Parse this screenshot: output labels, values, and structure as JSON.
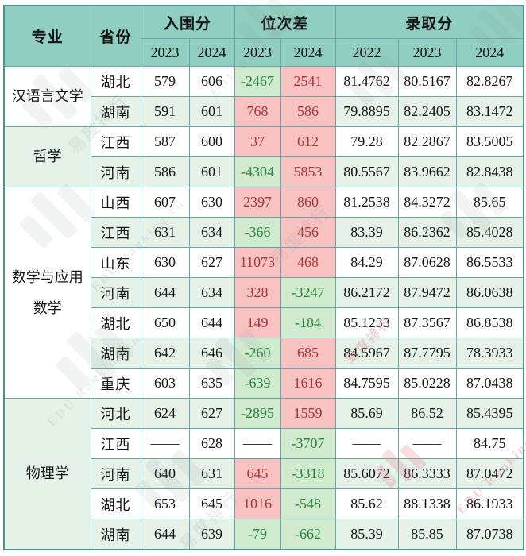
{
  "header": {
    "col_major": "专业",
    "col_province": "省份",
    "group_shortlist": "入围分",
    "group_rankdiff": "位次差",
    "group_admit": "录取分",
    "sub_years": [
      "2023",
      "2024",
      "2023",
      "2024",
      "2022",
      "2023",
      "2024"
    ]
  },
  "colors": {
    "header_bg": "#8fcec0",
    "border": "#6ba4a6",
    "row_alt_green": "#e4f2e8",
    "highlight_red_bg": "#f8c2c2",
    "highlight_red_text": "#a83838",
    "highlight_green_bg": "#cfeacd",
    "highlight_green_text": "#2b8440"
  },
  "watermark": {
    "brand_cn": "易度排行",
    "brand_en": "EDU Ranking.cn"
  },
  "table": {
    "groups": [
      {
        "major": "汉语言文学",
        "shade": "w",
        "rows": [
          {
            "province": "湖北",
            "shade": "w",
            "values": [
              "579",
              "606",
              "-2467",
              "2541",
              "81.4762",
              "80.5167",
              "82.8267"
            ],
            "hl": [
              "",
              "",
              "g",
              "r",
              "",
              "",
              ""
            ]
          },
          {
            "province": "湖南",
            "shade": "g",
            "values": [
              "591",
              "601",
              "768",
              "586",
              "79.8895",
              "82.2405",
              "83.1472"
            ],
            "hl": [
              "",
              "",
              "r",
              "r",
              "",
              "",
              ""
            ]
          }
        ]
      },
      {
        "major": "哲学",
        "shade": "g",
        "rows": [
          {
            "province": "江西",
            "shade": "w",
            "values": [
              "587",
              "600",
              "37",
              "612",
              "79.28",
              "82.2867",
              "83.5005"
            ],
            "hl": [
              "",
              "",
              "r",
              "r",
              "",
              "",
              ""
            ]
          },
          {
            "province": "河南",
            "shade": "g",
            "values": [
              "586",
              "601",
              "-4304",
              "5853",
              "80.5567",
              "83.9662",
              "82.8438"
            ],
            "hl": [
              "",
              "",
              "g",
              "r",
              "",
              "",
              ""
            ]
          }
        ]
      },
      {
        "major": "数学与应用数学",
        "shade": "w",
        "rows": [
          {
            "province": "山西",
            "shade": "w",
            "values": [
              "607",
              "630",
              "2397",
              "860",
              "81.2538",
              "84.3272",
              "85.65"
            ],
            "hl": [
              "",
              "",
              "r",
              "r",
              "",
              "",
              ""
            ]
          },
          {
            "province": "江西",
            "shade": "g",
            "values": [
              "631",
              "634",
              "-366",
              "456",
              "83.39",
              "86.2362",
              "85.4028"
            ],
            "hl": [
              "",
              "",
              "g",
              "r",
              "",
              "",
              ""
            ]
          },
          {
            "province": "山东",
            "shade": "w",
            "values": [
              "630",
              "627",
              "11073",
              "468",
              "84.29",
              "87.0628",
              "86.5533"
            ],
            "hl": [
              "",
              "",
              "r",
              "r",
              "",
              "",
              ""
            ]
          },
          {
            "province": "河南",
            "shade": "g",
            "values": [
              "644",
              "634",
              "328",
              "-3247",
              "86.2172",
              "87.9472",
              "86.0638"
            ],
            "hl": [
              "",
              "",
              "r",
              "g",
              "",
              "",
              ""
            ]
          },
          {
            "province": "湖北",
            "shade": "w",
            "values": [
              "650",
              "644",
              "149",
              "-184",
              "85.1233",
              "87.3567",
              "86.8538"
            ],
            "hl": [
              "",
              "",
              "r",
              "g",
              "",
              "",
              ""
            ]
          },
          {
            "province": "湖南",
            "shade": "g",
            "values": [
              "642",
              "646",
              "-260",
              "685",
              "84.5967",
              "87.7795",
              "78.3933"
            ],
            "hl": [
              "",
              "",
              "g",
              "r",
              "",
              "",
              ""
            ]
          },
          {
            "province": "重庆",
            "shade": "w",
            "values": [
              "603",
              "635",
              "-639",
              "1616",
              "84.7595",
              "85.0228",
              "87.0438"
            ],
            "hl": [
              "",
              "",
              "g",
              "r",
              "",
              "",
              ""
            ]
          }
        ]
      },
      {
        "major": "物理学",
        "shade": "g",
        "rows": [
          {
            "province": "河北",
            "shade": "g",
            "values": [
              "624",
              "627",
              "-2895",
              "1559",
              "85.69",
              "86.52",
              "85.4395"
            ],
            "hl": [
              "",
              "",
              "g",
              "r",
              "",
              "",
              ""
            ]
          },
          {
            "province": "江西",
            "shade": "w",
            "values": [
              "——",
              "628",
              "——",
              "-3707",
              "——",
              "——",
              "84.75"
            ],
            "hl": [
              "",
              "",
              "",
              "g",
              "",
              "",
              ""
            ]
          },
          {
            "province": "河南",
            "shade": "g",
            "values": [
              "640",
              "631",
              "645",
              "-3318",
              "85.6072",
              "86.3333",
              "87.0472"
            ],
            "hl": [
              "",
              "",
              "r",
              "g",
              "",
              "",
              ""
            ]
          },
          {
            "province": "湖北",
            "shade": "w",
            "values": [
              "653",
              "645",
              "1016",
              "-548",
              "85.62",
              "88.1338",
              "86.1933"
            ],
            "hl": [
              "",
              "",
              "r",
              "g",
              "",
              "",
              ""
            ]
          },
          {
            "province": "湖南",
            "shade": "g",
            "values": [
              "644",
              "639",
              "-79",
              "-662",
              "85.39",
              "85.85",
              "87.0738"
            ],
            "hl": [
              "",
              "",
              "g",
              "g",
              "",
              "",
              ""
            ]
          }
        ]
      }
    ]
  }
}
